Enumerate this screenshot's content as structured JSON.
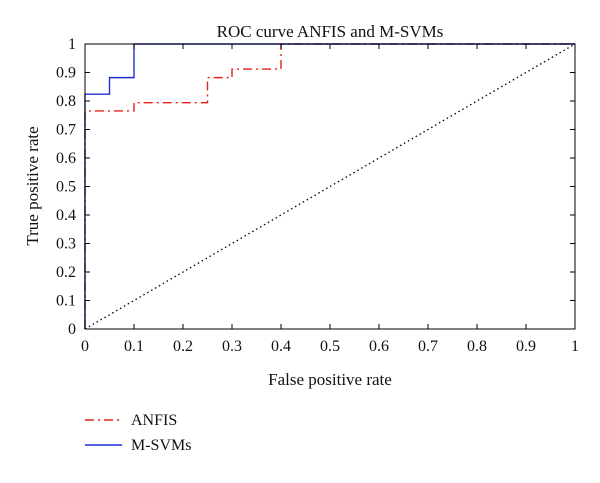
{
  "chart_data": {
    "type": "line",
    "title": "ROC curve ANFIS and M-SVMs",
    "xlabel": "False positive rate",
    "ylabel": "True positive rate",
    "xlim": [
      0,
      1
    ],
    "ylim": [
      0,
      1
    ],
    "x_ticks": [
      "0",
      "0.1",
      "0.2",
      "0.3",
      "0.4",
      "0.5",
      "0.6",
      "0.7",
      "0.8",
      "0.9",
      "1"
    ],
    "y_ticks": [
      "0",
      "0.1",
      "0.2",
      "0.3",
      "0.4",
      "0.5",
      "0.6",
      "0.7",
      "0.8",
      "0.9",
      "1"
    ],
    "grid": false,
    "legend_position": "bottom-left",
    "series": [
      {
        "name": "ANFIS",
        "color": "#e8201c",
        "style": "dash-dot",
        "x": [
          0,
          0,
          0.1,
          0.1,
          0.25,
          0.25,
          0.3,
          0.3,
          0.4,
          0.4,
          1
        ],
        "y": [
          0,
          0.765,
          0.765,
          0.794,
          0.794,
          0.882,
          0.882,
          0.912,
          0.912,
          1,
          1
        ]
      },
      {
        "name": "M-SVMs",
        "color": "#1f2fd0",
        "style": "solid",
        "x": [
          0,
          0,
          0.05,
          0.05,
          0.1,
          0.1,
          1
        ],
        "y": [
          0,
          0.824,
          0.824,
          0.882,
          0.882,
          1,
          1
        ]
      },
      {
        "name": "",
        "color": "#000000",
        "style": "dotted",
        "x": [
          0,
          1
        ],
        "y": [
          0,
          1
        ]
      }
    ]
  }
}
